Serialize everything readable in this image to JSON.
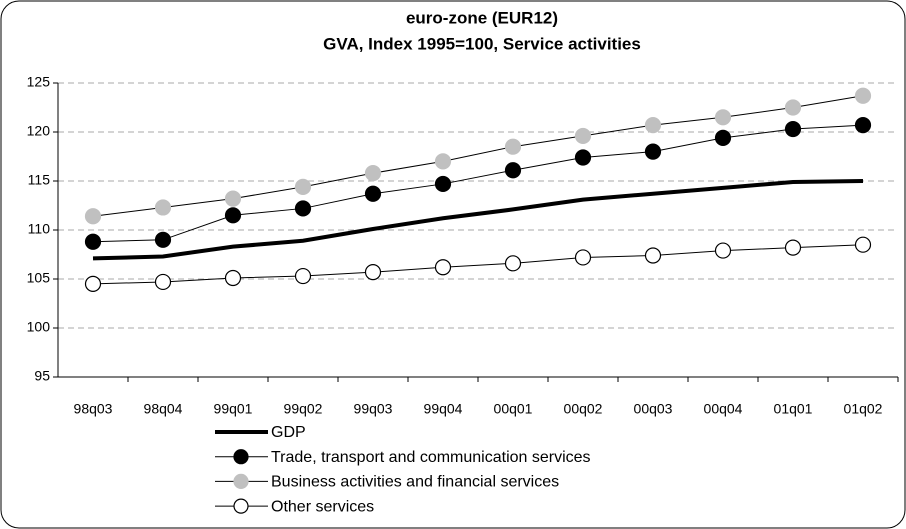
{
  "chart_data": {
    "type": "line",
    "title": "euro-zone (EUR12)",
    "subtitle": "GVA, Index 1995=100, Service activities",
    "categories": [
      "98q03",
      "98q04",
      "99q01",
      "99q02",
      "99q03",
      "99q04",
      "00q01",
      "00q02",
      "00q03",
      "00q04",
      "01q01",
      "01q02"
    ],
    "series": [
      {
        "name": "GDP",
        "color": "#000000",
        "marker": false,
        "values": [
          107.1,
          107.3,
          108.3,
          108.9,
          110.1,
          111.2,
          112.1,
          113.1,
          113.7,
          114.3,
          114.9,
          115.0
        ]
      },
      {
        "name": "Trade, transport and communication services",
        "color": "#000000",
        "marker": true,
        "values": [
          108.8,
          109.0,
          111.5,
          112.2,
          113.7,
          114.7,
          116.1,
          117.4,
          118.0,
          119.4,
          120.3,
          120.7
        ]
      },
      {
        "name": "Business activities and financial services",
        "color": "#c0c0c0",
        "marker": true,
        "values": [
          111.4,
          112.3,
          113.2,
          114.4,
          115.8,
          117.0,
          118.5,
          119.6,
          120.7,
          121.5,
          122.5,
          123.7
        ]
      },
      {
        "name": "Other services",
        "color": "#ffffff",
        "marker": true,
        "values": [
          104.5,
          104.7,
          105.1,
          105.3,
          105.7,
          106.2,
          106.6,
          107.2,
          107.4,
          107.9,
          108.2,
          108.5
        ]
      }
    ],
    "ylim": [
      95,
      125
    ],
    "yticks": [
      95,
      100,
      105,
      110,
      115,
      120,
      125
    ],
    "grid": true
  }
}
